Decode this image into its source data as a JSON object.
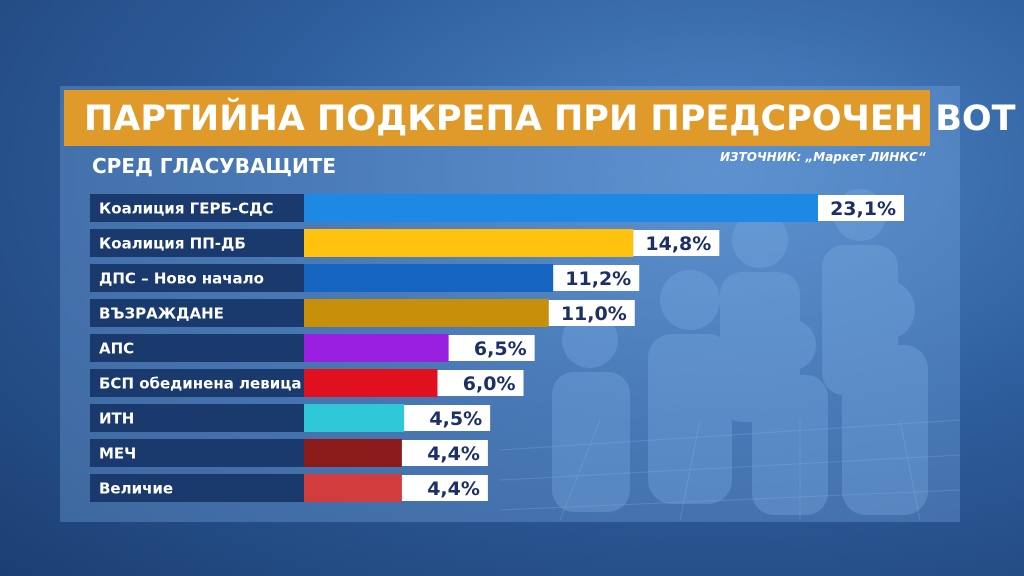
{
  "header": {
    "title": "ПАРТИЙНА ПОДКРЕПА ПРИ ПРЕДСРОЧЕН ВОТ",
    "subtitle": "СРЕД ГЛАСУВАЩИТЕ",
    "source": "ИЗТОЧНИК: „Маркет ЛИНКС“"
  },
  "chart_data": {
    "type": "bar",
    "orientation": "horizontal",
    "title": "ПАРТИЙНА ПОДКРЕПА ПРИ ПРЕДСРОЧЕН ВОТ",
    "subtitle": "СРЕД ГЛАСУВАЩИТЕ",
    "categories": [
      "Коалиция ГЕРБ-СДС",
      "Коалиция ПП-ДБ",
      "ДПС – Ново начало",
      "ВЪЗРАЖДАНЕ",
      "АПС",
      "БСП обединена левица",
      "ИТН",
      "МЕЧ",
      "Величие"
    ],
    "values": [
      23.1,
      14.8,
      11.2,
      11.0,
      6.5,
      6.0,
      4.5,
      4.4,
      4.4
    ],
    "value_labels": [
      "23,1%",
      "14,8%",
      "11,2%",
      "11,0%",
      "6,5%",
      "6,0%",
      "4,5%",
      "4,4%",
      "4,4%"
    ],
    "colors": [
      "#1e88e5",
      "#ffc20e",
      "#1565c0",
      "#c8900a",
      "#9b1fe0",
      "#e0101e",
      "#2ec8d8",
      "#8b1a1a",
      "#d23c3c"
    ],
    "label_bg_color": "#1a3a6e",
    "xlim": [
      0,
      23.1
    ],
    "grid": false,
    "legend": "none"
  }
}
